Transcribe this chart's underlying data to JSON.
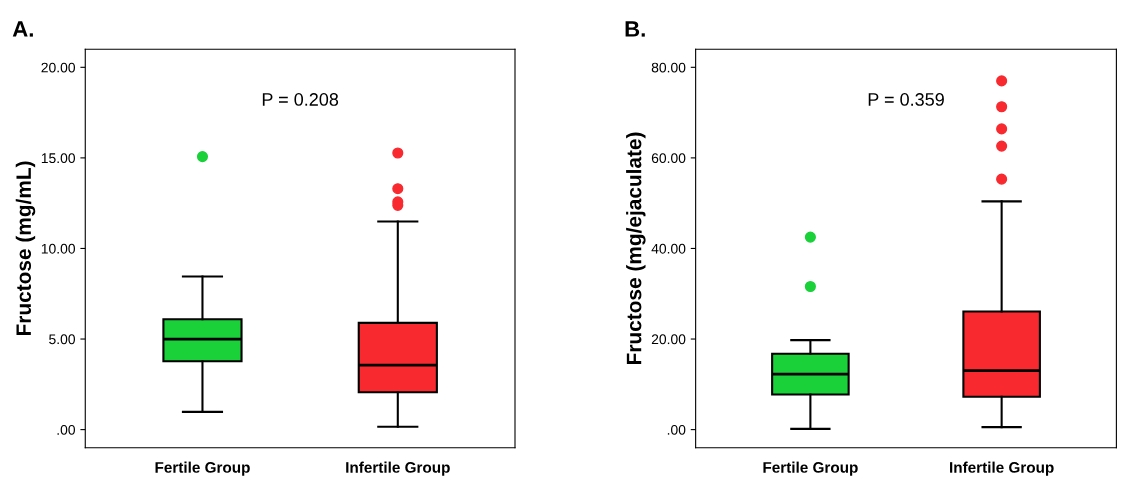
{
  "chart_data": [
    {
      "type": "box",
      "title": "A.",
      "ylabel": "Fructose (mg/mL)",
      "categories": [
        "Fertile Group",
        "Infertile Group"
      ],
      "colors": [
        "#1ad13a",
        "#f82a30"
      ],
      "boxes": [
        {
          "low": 0.98,
          "q1": 3.77,
          "median": 4.99,
          "q3": 6.09,
          "high": 8.45,
          "outliers": [
            15.07
          ]
        },
        {
          "low": 0.16,
          "q1": 2.06,
          "median": 3.56,
          "q3": 5.89,
          "high": 11.49,
          "outliers": [
            15.27,
            13.3,
            12.57,
            12.38
          ]
        }
      ],
      "ylim": [
        -1,
        21
      ],
      "yticks": [
        {
          "value": 0,
          "label": ".00"
        },
        {
          "value": 5,
          "label": "5.00"
        },
        {
          "value": 10,
          "label": "10.00"
        },
        {
          "value": 15,
          "label": "15.00"
        },
        {
          "value": 20,
          "label": "20.00"
        }
      ],
      "annotations": [
        "P = 0.208"
      ],
      "grid": false
    },
    {
      "type": "box",
      "title": "B.",
      "ylabel": "Fructose (mg/ejaculate)",
      "categories": [
        "Fertile Group",
        "Infertile Group"
      ],
      "colors": [
        "#1ad13a",
        "#f82a30"
      ],
      "boxes": [
        {
          "low": 0.16,
          "q1": 7.74,
          "median": 12.24,
          "q3": 16.75,
          "high": 19.75,
          "outliers": [
            42.5,
            31.6
          ]
        },
        {
          "low": 0.55,
          "q1": 7.27,
          "median": 13.03,
          "q3": 26.07,
          "high": 50.4,
          "outliers": [
            77.0,
            71.3,
            66.4,
            62.6,
            55.3
          ]
        }
      ],
      "ylim": [
        -4,
        84
      ],
      "yticks": [
        {
          "value": 0,
          "label": ".00"
        },
        {
          "value": 20,
          "label": "20.00"
        },
        {
          "value": 40,
          "label": "40.00"
        },
        {
          "value": 60,
          "label": "60.00"
        },
        {
          "value": 80,
          "label": "80.00"
        }
      ],
      "annotations": [
        "P = 0.359"
      ],
      "grid": false
    }
  ]
}
